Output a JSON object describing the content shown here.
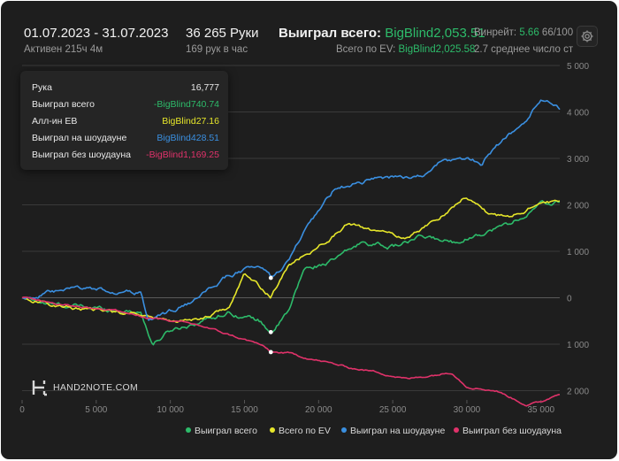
{
  "header": {
    "date_range": "01.07.2023 - 31.07.2023",
    "active_time": "Активен 215ч 4м",
    "hands_count": "36 265 Руки",
    "hands_per_hour": "169 рук в час",
    "won_total_label": "Выиграл всего:",
    "won_total_value": "BigBlind2,053.51",
    "ev_total_label": "Всего по EV:",
    "ev_total_value": "BigBlind2,025.58",
    "winrate_label": "Винрейт:",
    "winrate_value": "5.66",
    "winrate_extra": "66/100",
    "avg_players": "2.7 среднее число ст"
  },
  "tooltip": {
    "rows": [
      {
        "label": "Рука",
        "value": "16,777",
        "color": "#e8e8e8"
      },
      {
        "label": "Выиграл всего",
        "value": "-BigBlind740.74",
        "color": "#2dbb6a"
      },
      {
        "label": "Алл-ин EB",
        "value": "BigBlind27.16",
        "color": "#e6e62a"
      },
      {
        "label": "Выиграл на шоудауне",
        "value": "BigBlind428.51",
        "color": "#3a8fe0"
      },
      {
        "label": "Выиграл без шоудауна",
        "value": "-BigBlind1,169.25",
        "color": "#e0326a"
      }
    ]
  },
  "logo_text": "HAND2NOTE.COM",
  "chart_data": {
    "type": "line",
    "xlim": [
      0,
      36265
    ],
    "ylim": [
      -2200,
      5000
    ],
    "x_ticks": [
      0,
      5000,
      10000,
      15000,
      20000,
      25000,
      30000,
      35000
    ],
    "x_tick_labels": [
      "0",
      "5 000",
      "10 000",
      "15 000",
      "20 000",
      "25 000",
      "30 000",
      "35 000"
    ],
    "y_ticks": [
      5000,
      4000,
      3000,
      2000,
      1000,
      0,
      -1000,
      -2000
    ],
    "y_tick_labels": [
      "5 000",
      "4 000",
      "3 000",
      "2 000",
      "1 000",
      "0",
      "1 000",
      "2 000"
    ],
    "marker_x": 16777,
    "series": [
      {
        "name": "Выиграл всего",
        "color": "#2dbb6a",
        "noise": 70,
        "x": [
          0,
          2000,
          4000,
          6000,
          8000,
          8800,
          10000,
          12000,
          14000,
          16000,
          16777,
          18000,
          19000,
          21000,
          23000,
          25000,
          27000,
          29000,
          31000,
          33000,
          35000,
          36265
        ],
        "y": [
          0,
          -150,
          -200,
          -250,
          -300,
          -1000,
          -700,
          -500,
          -300,
          -500,
          -740,
          -300,
          600,
          800,
          1200,
          1100,
          1300,
          1200,
          1400,
          1600,
          2000,
          2050
        ]
      },
      {
        "name": "Всего по EV",
        "color": "#e6e62a",
        "noise": 55,
        "x": [
          0,
          2000,
          4000,
          6000,
          8000,
          10000,
          12000,
          14000,
          15000,
          16777,
          18000,
          20000,
          22000,
          24000,
          26000,
          28000,
          30000,
          31500,
          33000,
          35000,
          36265
        ],
        "y": [
          0,
          -150,
          -250,
          -300,
          -350,
          -500,
          -450,
          -200,
          500,
          27,
          700,
          1100,
          1600,
          1400,
          1300,
          1700,
          2200,
          1800,
          1700,
          2100,
          2030
        ]
      },
      {
        "name": "Выиграл на шоудауне",
        "color": "#3a8fe0",
        "noise": 65,
        "x": [
          0,
          2000,
          4000,
          6000,
          8000,
          8500,
          10000,
          12000,
          14000,
          16000,
          16777,
          18000,
          19000,
          20000,
          21000,
          24000,
          27000,
          28000,
          30000,
          31000,
          32000,
          34000,
          35000,
          36265
        ],
        "y": [
          0,
          100,
          200,
          150,
          100,
          -500,
          -300,
          0,
          500,
          700,
          430,
          800,
          1400,
          1800,
          2300,
          2600,
          2600,
          2900,
          3000,
          2900,
          3300,
          3800,
          4300,
          4100
        ]
      },
      {
        "name": "Выиграл без шоудауна",
        "color": "#e0326a",
        "noise": 30,
        "x": [
          0,
          2000,
          4000,
          6000,
          8000,
          10000,
          12000,
          14000,
          16000,
          16777,
          18000,
          20000,
          22000,
          24000,
          26000,
          28000,
          29000,
          30000,
          32000,
          34000,
          35000,
          36265
        ],
        "y": [
          0,
          -100,
          -200,
          -250,
          -400,
          -500,
          -600,
          -800,
          -1000,
          -1170,
          -1200,
          -1350,
          -1500,
          -1600,
          -1750,
          -1650,
          -1600,
          -1900,
          -2000,
          -2300,
          -2250,
          -2050
        ]
      }
    ],
    "marker_points": [
      {
        "x": 16777,
        "y": 428
      },
      {
        "x": 16777,
        "y": -740
      },
      {
        "x": 16777,
        "y": -1170
      }
    ],
    "legend": [
      "Выиграл всего",
      "Всего по EV",
      "Выиграл на шоудауне",
      "Выиграл без шоудауна"
    ]
  }
}
